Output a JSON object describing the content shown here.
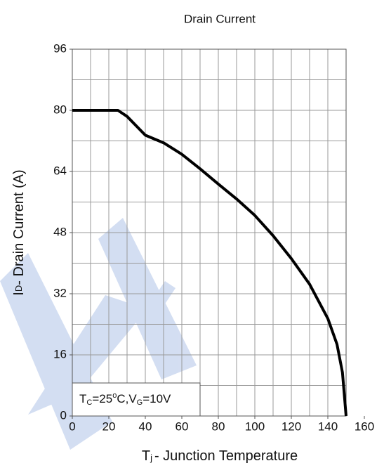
{
  "chart_data": {
    "type": "line",
    "title": "Drain Current",
    "y_label_parts": [
      "I",
      "D",
      "- Drain Current (A)"
    ],
    "x_label_parts": [
      "T",
      "j",
      "- Junction Temperature"
    ],
    "annotation_parts": [
      "T",
      "C",
      "=25",
      "o",
      "C,V",
      "G",
      "=10V"
    ],
    "x": [
      0,
      25,
      30,
      40,
      50,
      60,
      70,
      80,
      90,
      100,
      110,
      120,
      130,
      140,
      145,
      148,
      150
    ],
    "series": [
      {
        "name": "ID",
        "color": "#000000",
        "values": [
          80,
          80,
          78.4,
          73.5,
          71.5,
          68.5,
          64.7,
          60.7,
          56.8,
          52.5,
          47.2,
          41.2,
          34.5,
          25.5,
          18.8,
          11.4,
          0
        ]
      }
    ],
    "xlim": [
      0,
      150
    ],
    "ylim": [
      0,
      96
    ],
    "xticks": [
      0,
      20,
      40,
      60,
      80,
      100,
      120,
      140,
      160
    ],
    "yticks": [
      0,
      16,
      32,
      48,
      64,
      80,
      96
    ],
    "x_grid": [
      10,
      20,
      30,
      40,
      50,
      60,
      70,
      80,
      90,
      100,
      110,
      120,
      130,
      140
    ],
    "y_grid": [
      8,
      16,
      24,
      32,
      40,
      48,
      56,
      64,
      72,
      80,
      88
    ],
    "grid": true
  }
}
